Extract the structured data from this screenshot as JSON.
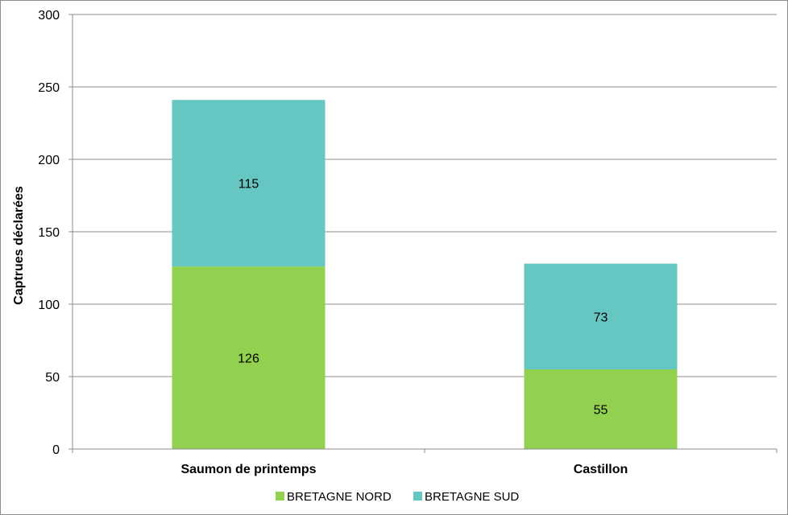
{
  "chart_data": {
    "type": "bar",
    "stacked": true,
    "categories": [
      "Saumon de printemps",
      "Castillon"
    ],
    "series": [
      {
        "name": "BRETAGNE NORD",
        "values": [
          126,
          55
        ],
        "color": "#92d050"
      },
      {
        "name": "BRETAGNE SUD",
        "values": [
          115,
          73
        ],
        "color": "#66c6c2"
      }
    ],
    "title": "",
    "xlabel": "",
    "ylabel": "Captrues déclarées",
    "ylim": [
      0,
      300
    ],
    "yticks": [
      0,
      50,
      100,
      150,
      200,
      250,
      300
    ],
    "grid": true,
    "legend_position": "bottom",
    "data_labels": true
  }
}
